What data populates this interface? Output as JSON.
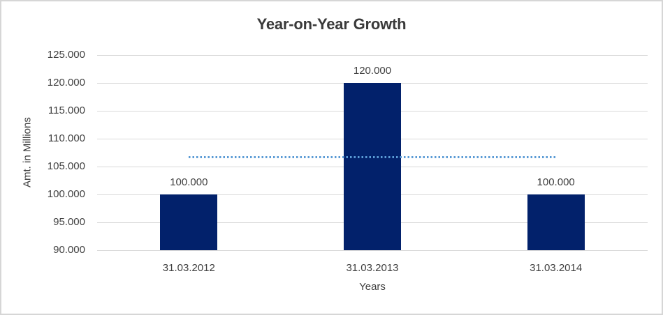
{
  "chart_data": {
    "type": "bar",
    "title": "Year-on-Year Growth",
    "xlabel": "Years",
    "ylabel": "Amt. in Millions",
    "categories": [
      "31.03.2012",
      "31.03.2013",
      "31.03.2014"
    ],
    "values": [
      100000,
      120000,
      100000
    ],
    "data_labels": [
      "100.000",
      "120.000",
      "100.000"
    ],
    "y_tick_labels": [
      "125.000",
      "120.000",
      "115.000",
      "110.000",
      "105.000",
      "100.000",
      "95.000",
      "90.000"
    ],
    "ylim": [
      90000,
      125000
    ],
    "grid": true,
    "legend": false,
    "bar_color": "#02216B",
    "gridline_color": "#D9D9D9",
    "frame_color": "#D6D6D6",
    "text_color": "#404040",
    "trend_line": {
      "value": 106667,
      "style": "dotted",
      "color": "#5B9BD5",
      "from_category": "31.03.2012",
      "to_category": "31.03.2014"
    }
  }
}
